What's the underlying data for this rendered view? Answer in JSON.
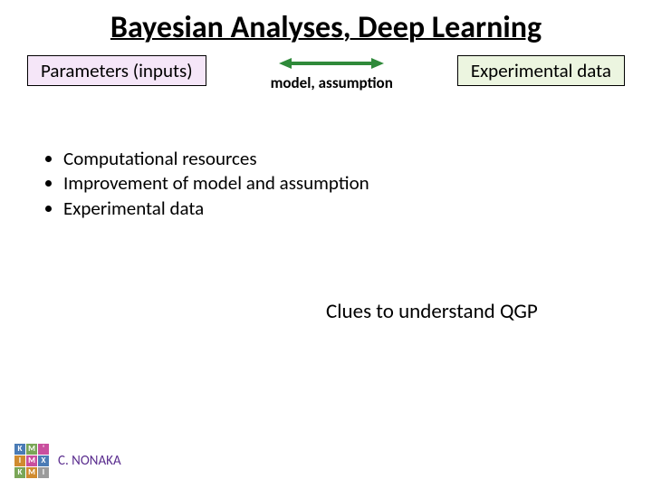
{
  "title": "Bayesian Analyses, Deep Learning",
  "left_box": "Parameters (inputs)",
  "right_box": "Experimental data",
  "arrow_label": "model, assumption",
  "arrow_color": "#2f8a3a",
  "left_box_bg": "#f5e6f8",
  "right_box_bg": "#ecf5e0",
  "bullets": [
    "Computational resources",
    "Improvement of model and assumption",
    "Experimental data"
  ],
  "clue_text": "Clues to understand QGP",
  "author": "C. NONAKA",
  "logo": {
    "letters": [
      "K",
      "M",
      "'",
      "I",
      "M",
      "X",
      "K",
      "M",
      "I"
    ],
    "colors": [
      "#4a7bb5",
      "#7aa657",
      "#c94f9e",
      "#d08b2f",
      "#c94f9e",
      "#4a7bb5",
      "#7aa657",
      "#d08b2f",
      "#9b9b9b"
    ]
  }
}
